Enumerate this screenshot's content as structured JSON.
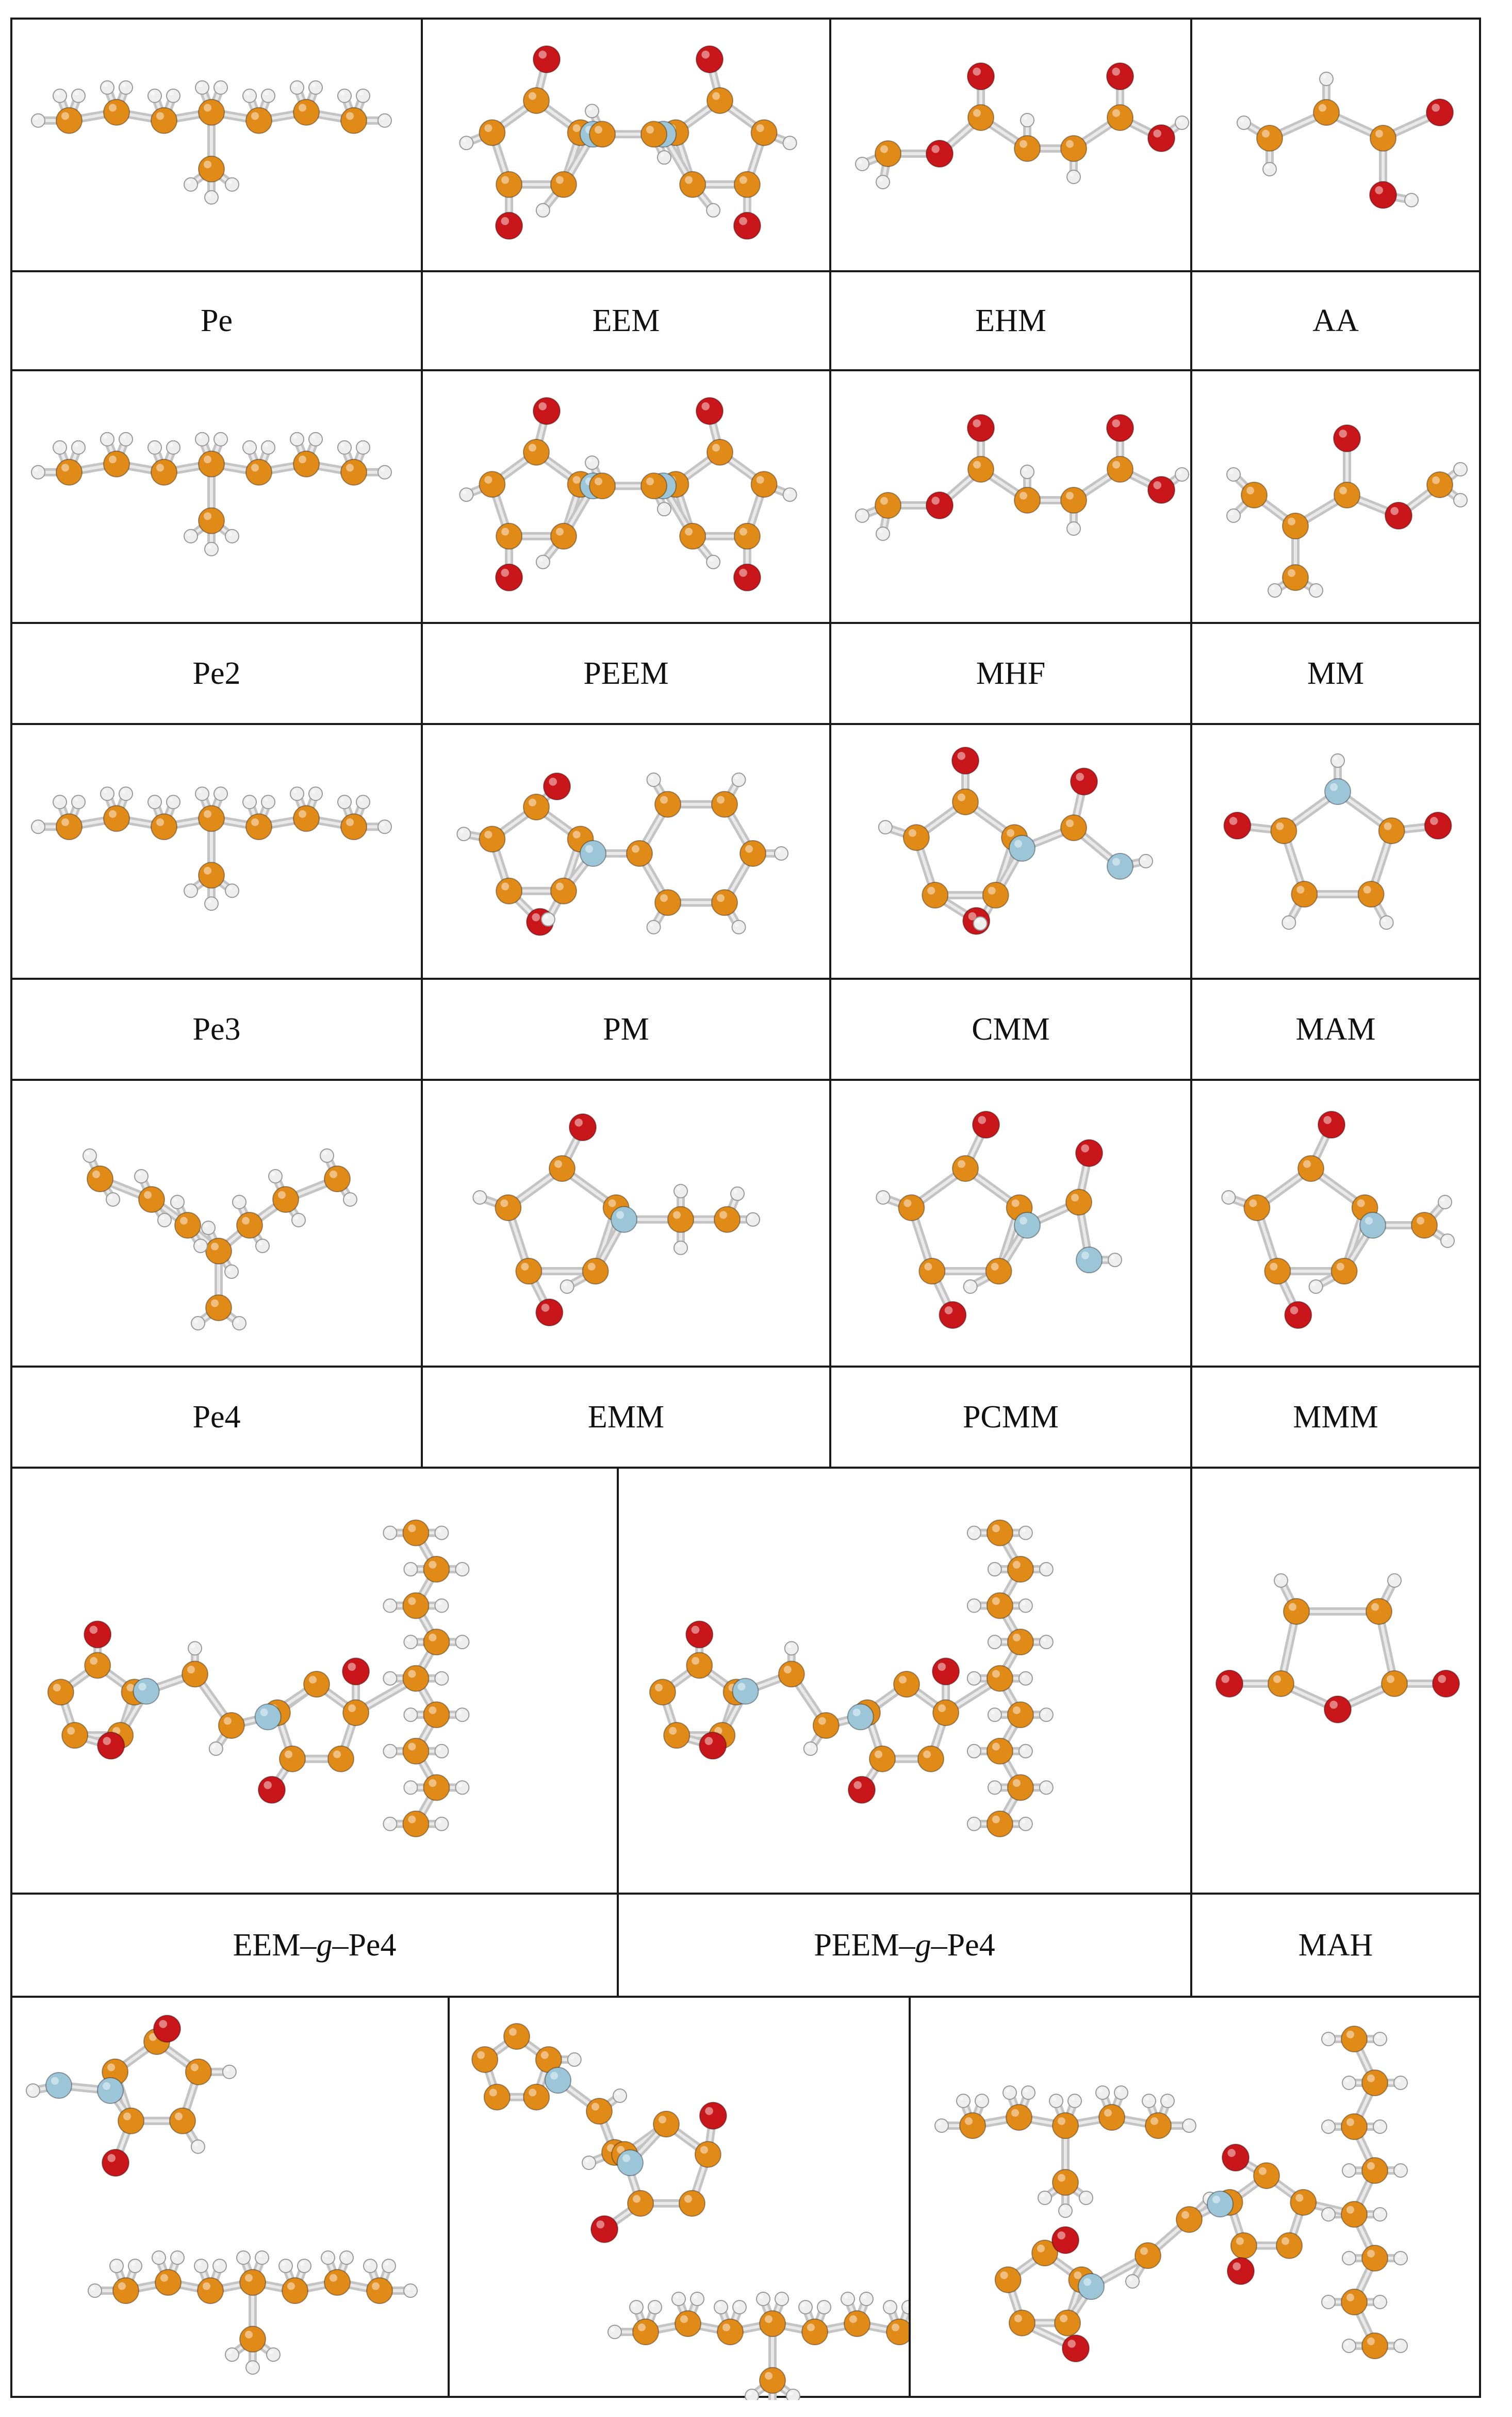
{
  "labels": {
    "r1": [
      "Pe",
      "EEM",
      "EHM",
      "AA"
    ],
    "r2": [
      "Pe2",
      "PEEM",
      "MHF",
      "MM"
    ],
    "r3": [
      "Pe3",
      "PM",
      "CMM",
      "MAM"
    ],
    "r4": [
      "Pe4",
      "EMM",
      "PCMM",
      "MMM"
    ],
    "r5": {
      "c1_pre": "EEM–",
      "c1_g": "g",
      "c1_post": "–Pe4",
      "c2_pre": "PEEM–",
      "c2_g": "g",
      "c2_post": "–Pe4",
      "c3": "MAH"
    }
  },
  "colors": {
    "carbon": "#e08a18",
    "oxygen": "#c8161b",
    "nitrogen": "#9cc6d8",
    "hydrogen": "#eeeeee",
    "bond": "#c4c4c4",
    "border": "#1a1a1a"
  },
  "molecules": [
    "pentane-chain",
    "pyrrolidinedione-dimer",
    "ester-chain",
    "acrylic-acid",
    "pentane-chain",
    "pyrrolidinedione-dimer",
    "ester-chain",
    "methacrylate",
    "pentane-chain",
    "phenyl-ring",
    "carbamoyl-ring",
    "maleimide",
    "branched-alkane",
    "ring-ethyl",
    "ring-carbamoyl",
    "ring-methyl",
    "grafted-complex",
    "grafted-complex",
    "maleic-anhydride",
    "complex-pair",
    "complex-pair",
    "complex-cluster"
  ]
}
